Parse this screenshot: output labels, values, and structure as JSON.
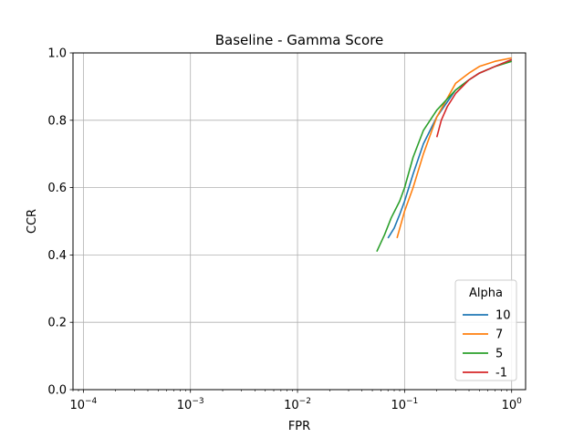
{
  "chart_data": {
    "type": "line",
    "title": "Baseline - Gamma Score",
    "xlabel": "FPR",
    "ylabel": "CCR",
    "xscale": "log",
    "xlim": [
      8e-05,
      1.35
    ],
    "ylim": [
      0.0,
      1.0
    ],
    "x_ticks": [
      {
        "value": 0.0001,
        "base": "10",
        "exp": "−4"
      },
      {
        "value": 0.001,
        "base": "10",
        "exp": "−3"
      },
      {
        "value": 0.01,
        "base": "10",
        "exp": "−2"
      },
      {
        "value": 0.1,
        "base": "10",
        "exp": "−1"
      },
      {
        "value": 1,
        "base": "10",
        "exp": "0"
      }
    ],
    "y_ticks": [
      {
        "value": 0.0,
        "label": "0.0"
      },
      {
        "value": 0.2,
        "label": "0.2"
      },
      {
        "value": 0.4,
        "label": "0.4"
      },
      {
        "value": 0.6,
        "label": "0.6"
      },
      {
        "value": 0.8,
        "label": "0.8"
      },
      {
        "value": 1.0,
        "label": "1.0"
      }
    ],
    "grid": true,
    "legend": {
      "title": "Alpha",
      "placement": "lower-right"
    },
    "series": [
      {
        "name": "10",
        "color": "#1f77b4",
        "x": [
          0.07,
          0.08,
          0.09,
          0.1,
          0.12,
          0.15,
          0.2,
          0.3,
          0.4,
          0.5,
          0.7,
          1.0
        ],
        "y": [
          0.45,
          0.48,
          0.52,
          0.56,
          0.64,
          0.73,
          0.81,
          0.89,
          0.92,
          0.94,
          0.96,
          0.98
        ]
      },
      {
        "name": "7",
        "color": "#ff7f0e",
        "x": [
          0.085,
          0.1,
          0.12,
          0.15,
          0.2,
          0.3,
          0.4,
          0.5,
          0.7,
          1.0
        ],
        "y": [
          0.45,
          0.53,
          0.6,
          0.7,
          0.81,
          0.91,
          0.94,
          0.96,
          0.975,
          0.985
        ]
      },
      {
        "name": "5",
        "color": "#2ca02c",
        "x": [
          0.055,
          0.065,
          0.075,
          0.09,
          0.1,
          0.12,
          0.15,
          0.2,
          0.3,
          0.4,
          0.5,
          0.7,
          1.0
        ],
        "y": [
          0.41,
          0.46,
          0.51,
          0.56,
          0.6,
          0.69,
          0.77,
          0.83,
          0.89,
          0.92,
          0.94,
          0.96,
          0.975
        ]
      },
      {
        "name": "-1",
        "color": "#d62728",
        "x": [
          0.2,
          0.22,
          0.25,
          0.3,
          0.4,
          0.5,
          0.7,
          1.0
        ],
        "y": [
          0.75,
          0.8,
          0.84,
          0.88,
          0.92,
          0.94,
          0.96,
          0.98
        ]
      }
    ]
  }
}
